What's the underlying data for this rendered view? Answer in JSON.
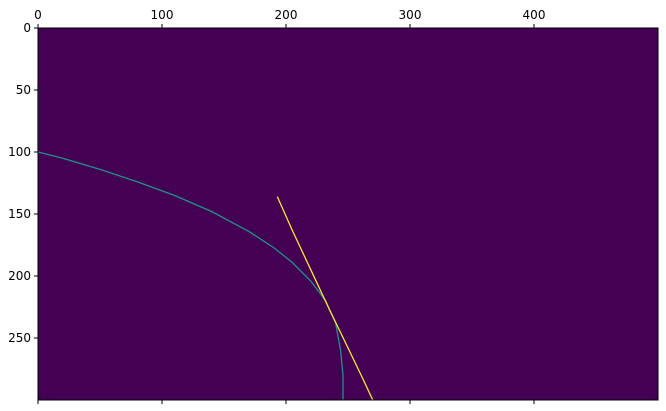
{
  "chart_data": {
    "type": "heatmap",
    "title": "",
    "xlabel": "",
    "ylabel": "",
    "xlim": [
      0,
      500
    ],
    "ylim": [
      300,
      0
    ],
    "x_ticks": [
      0,
      100,
      200,
      300,
      400
    ],
    "y_ticks": [
      0,
      50,
      100,
      150,
      200,
      250
    ],
    "x_tick_labels": [
      "0",
      "100",
      "200",
      "300",
      "400"
    ],
    "y_tick_labels": [
      "0",
      "50",
      "100",
      "150",
      "200",
      "250"
    ],
    "x_tick_position": "top",
    "grid": false,
    "colormap": "viridis",
    "background_color": "#440154",
    "series": [
      {
        "color": "#21918c",
        "points": [
          [
            0,
            45
          ],
          [
            0,
            100
          ],
          [
            20,
            105
          ],
          [
            50,
            114
          ],
          [
            80,
            124
          ],
          [
            110,
            135
          ],
          [
            140,
            148
          ],
          [
            170,
            164
          ],
          [
            190,
            177
          ],
          [
            205,
            189
          ],
          [
            220,
            204
          ],
          [
            232,
            220
          ],
          [
            240,
            238
          ],
          [
            244,
            260
          ],
          [
            246,
            280
          ],
          [
            246,
            300
          ]
        ]
      },
      {
        "color": "#fde725",
        "points": [
          [
            193,
            136
          ],
          [
            205,
            163
          ],
          [
            220,
            195
          ],
          [
            235,
            227
          ],
          [
            250,
            258
          ],
          [
            262,
            283
          ],
          [
            270,
            300
          ]
        ]
      }
    ]
  }
}
